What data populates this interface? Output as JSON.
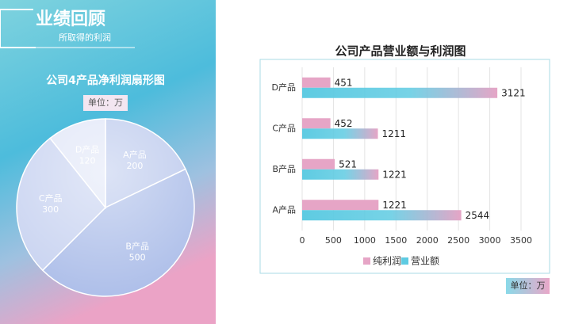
{
  "header": {
    "title": "业绩回顾",
    "subtitle": "所取得的利润"
  },
  "chart_data": [
    {
      "type": "pie",
      "title": "公司4产品净利润扇形图",
      "unit": "单位：万",
      "categories": [
        "A产品",
        "B产品",
        "C产品",
        "D产品"
      ],
      "values": [
        200,
        500,
        300,
        120
      ],
      "colors": [
        "#b9c7ec",
        "#a9bbe8",
        "#c6d1f0",
        "#dfe5f7"
      ]
    },
    {
      "type": "bar",
      "orientation": "horizontal",
      "title": "公司产品营业额与利润图",
      "unit": "单位：万",
      "categories": [
        "A产品",
        "B产品",
        "C产品",
        "D产品"
      ],
      "series": [
        {
          "name": "纯利润",
          "color": "#e6a5c6",
          "values": [
            1221,
            521,
            452,
            451
          ]
        },
        {
          "name": "营业额",
          "color": "#5ecbe2",
          "values": [
            2544,
            1221,
            1211,
            3121
          ]
        }
      ],
      "xlim": [
        0,
        3500
      ],
      "xticks": [
        0,
        500,
        1000,
        1500,
        2000,
        2500,
        3000,
        3500
      ],
      "grid": true,
      "legend": "bottom"
    }
  ]
}
